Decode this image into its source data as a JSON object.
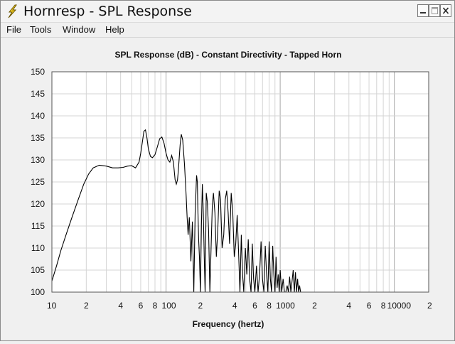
{
  "window": {
    "title": "Hornresp - SPL Response",
    "buttons": {
      "minimize": "_",
      "maximize": "□",
      "close": "X"
    }
  },
  "menu": [
    {
      "label": "File"
    },
    {
      "label": "Tools"
    },
    {
      "label": "Window"
    },
    {
      "label": "Help"
    }
  ],
  "colors": {
    "background": "#f0f0f0",
    "plot_bg": "#ffffff",
    "grid": "#c8c8c8",
    "trace": "#000000"
  },
  "chart_data": {
    "type": "line",
    "title": "SPL Response (dB) - Constant Directivity - Tapped Horn",
    "xlabel": "Frequency (hertz)",
    "ylabel": "",
    "xscale": "log",
    "xlim": [
      10,
      20000
    ],
    "ylim": [
      100,
      150
    ],
    "grid": true,
    "yticks": [
      100,
      105,
      110,
      115,
      120,
      125,
      130,
      135,
      140,
      145,
      150
    ],
    "xticks": [
      {
        "value": 10,
        "label": "10"
      },
      {
        "value": 20,
        "label": "2"
      },
      {
        "value": 40,
        "label": "4"
      },
      {
        "value": 60,
        "label": "6"
      },
      {
        "value": 80,
        "label": "8"
      },
      {
        "value": 100,
        "label": "100"
      },
      {
        "value": 200,
        "label": "2"
      },
      {
        "value": 400,
        "label": "4"
      },
      {
        "value": 600,
        "label": "6"
      },
      {
        "value": 800,
        "label": "8"
      },
      {
        "value": 1000,
        "label": "1000"
      },
      {
        "value": 2000,
        "label": "2"
      },
      {
        "value": 4000,
        "label": "4"
      },
      {
        "value": 6000,
        "label": "6"
      },
      {
        "value": 8000,
        "label": "8"
      },
      {
        "value": 10000,
        "label": "10000"
      },
      {
        "value": 20000,
        "label": "2"
      }
    ],
    "series": [
      {
        "x": [
          10,
          11,
          12,
          13.5,
          15,
          17,
          19,
          21,
          23,
          26,
          30,
          34,
          38,
          42,
          46,
          50,
          54,
          58,
          60,
          62,
          64,
          66,
          68,
          70,
          73,
          76,
          80,
          84,
          88,
          92,
          96,
          100,
          104,
          108,
          112,
          116,
          118,
          120,
          123,
          126,
          128,
          130,
          133,
          136,
          140,
          145,
          150,
          153,
          156,
          160,
          165,
          170,
          175,
          180,
          185,
          188,
          190,
          193,
          196,
          200,
          204,
          208,
          212,
          216,
          220,
          225,
          230,
          236,
          242,
          248,
          254,
          260,
          268,
          276,
          284,
          292,
          300,
          310,
          320,
          330,
          340,
          350,
          360,
          372,
          384,
          396,
          408,
          420,
          432,
          444,
          456,
          468,
          480,
          495,
          510,
          525,
          540,
          555,
          570,
          585,
          600,
          620,
          640,
          660,
          680,
          700,
          720,
          740,
          760,
          780,
          800,
          820,
          840,
          860,
          880,
          900,
          920,
          940,
          960,
          980,
          1000,
          1030,
          1060,
          1090,
          1120,
          1150,
          1180,
          1210,
          1240,
          1270,
          1300,
          1330,
          1360,
          1390,
          1420,
          1450,
          1480,
          1510,
          1540
        ],
        "y": [
          102.5,
          106,
          109.5,
          113.5,
          117,
          121,
          124.5,
          126.8,
          128.2,
          128.8,
          128.6,
          128.2,
          128.2,
          128.3,
          128.6,
          128.7,
          128.2,
          129.5,
          131.5,
          134,
          136.5,
          136.8,
          135,
          132.5,
          130.8,
          130.5,
          131.2,
          133,
          134.8,
          135.2,
          133.8,
          131.5,
          130,
          129.5,
          131,
          129.5,
          127.5,
          125.5,
          124.5,
          125.5,
          127.5,
          130,
          133.5,
          135.8,
          134.5,
          129,
          122,
          117,
          113,
          117,
          107,
          116,
          100,
          118,
          126.5,
          125,
          119,
          112,
          108,
          100,
          115,
          124.5,
          118,
          108,
          100,
          122.5,
          120.5,
          114,
          100,
          110,
          119.5,
          122.5,
          118,
          108,
          114,
          123,
          121,
          110,
          113,
          121,
          123,
          118,
          111,
          122.5,
          118,
          108,
          111,
          117.5,
          109,
          100,
          113,
          104,
          100,
          110,
          104,
          112,
          103,
          100,
          111,
          103,
          100,
          106,
          100,
          104,
          111.5,
          103,
          100,
          110.5,
          104,
          100,
          111.5,
          103,
          100,
          110.5,
          104,
          100,
          108,
          101,
          104,
          100,
          105,
          100,
          103,
          100,
          100,
          101.5,
          100,
          103.5,
          100,
          102.5,
          105,
          100,
          104.5,
          100,
          103,
          100,
          101.5,
          100,
          100
        ]
      }
    ]
  }
}
